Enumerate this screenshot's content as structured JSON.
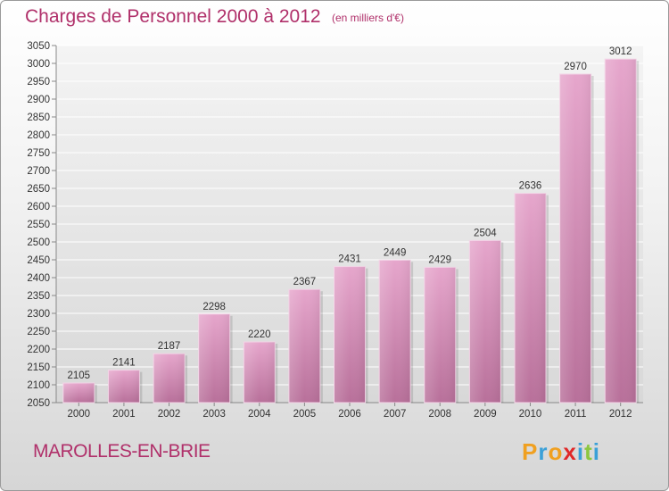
{
  "header": {
    "title": "Charges de Personnel 2000 à 2012",
    "subtitle": "(en milliers d'€)"
  },
  "footer": {
    "commune": "MAROLLES-EN-BRIE",
    "logo_letters": [
      {
        "ch": "P",
        "color": "#f0a020"
      },
      {
        "ch": "r",
        "color": "#3aa0d8"
      },
      {
        "ch": "o",
        "color": "#f0a020"
      },
      {
        "ch": "x",
        "color": "#e02828"
      },
      {
        "ch": "i",
        "color": "#3aa0d8"
      },
      {
        "ch": "t",
        "color": "#8cc63f"
      },
      {
        "ch": "i",
        "color": "#3aa0d8"
      }
    ]
  },
  "colors": {
    "accent": "#b0306a",
    "bar_top": "#e6a6cc",
    "bar_bottom": "#b8709a"
  },
  "chart_data": {
    "type": "bar",
    "categories": [
      "2000",
      "2001",
      "2002",
      "2003",
      "2004",
      "2005",
      "2006",
      "2007",
      "2008",
      "2009",
      "2010",
      "2011",
      "2012"
    ],
    "values": [
      2105,
      2141,
      2187,
      2298,
      2220,
      2367,
      2431,
      2449,
      2429,
      2504,
      2636,
      2970,
      3012
    ],
    "ylim": [
      2050,
      3050
    ],
    "ytick_step": 50,
    "grid": true,
    "data_labels": true
  }
}
